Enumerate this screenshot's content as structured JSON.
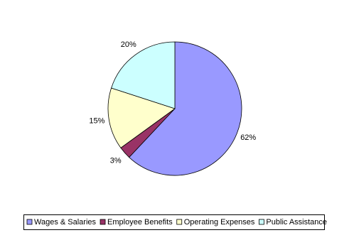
{
  "chart_data": {
    "type": "pie",
    "categories": [
      "Wages & Salaries",
      "Employee Benefits",
      "Operating Expenses",
      "Public Assistance"
    ],
    "values": [
      62,
      3,
      15,
      20
    ],
    "value_labels": [
      "62%",
      "3%",
      "15%",
      "20%"
    ],
    "colors": [
      "#9999ff",
      "#993366",
      "#ffffcc",
      "#ccffff"
    ],
    "legend": "bottom"
  }
}
